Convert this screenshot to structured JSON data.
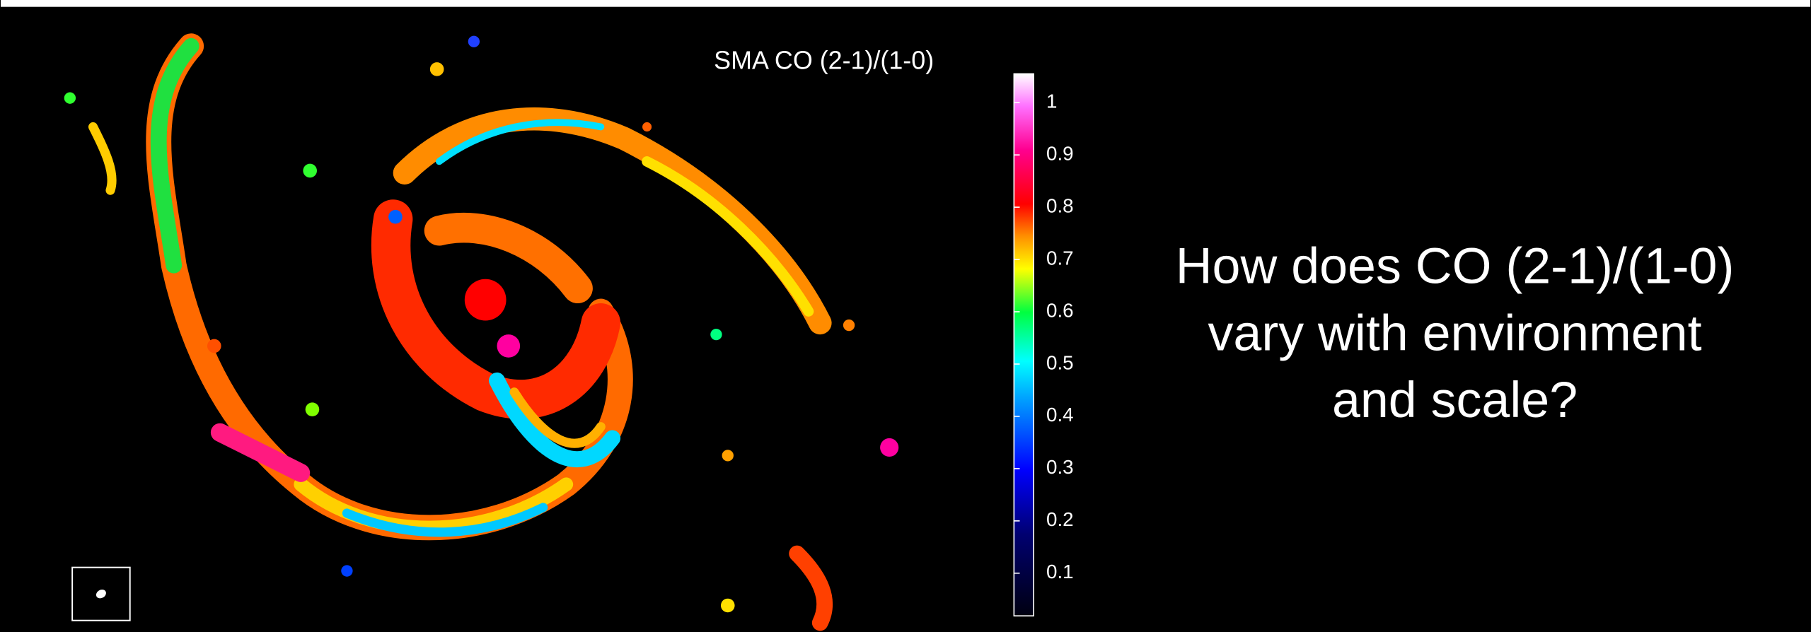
{
  "figure": {
    "label": "SMA CO (2-1)/(1-0)"
  },
  "colorbar": {
    "ticks": [
      0.1,
      0.2,
      0.3,
      0.4,
      0.5,
      0.6,
      0.7,
      0.8,
      0.9,
      1
    ]
  },
  "question": {
    "lines": [
      "How does CO (2-1)/(1-0)",
      "vary with environment",
      "and scale?"
    ]
  }
}
